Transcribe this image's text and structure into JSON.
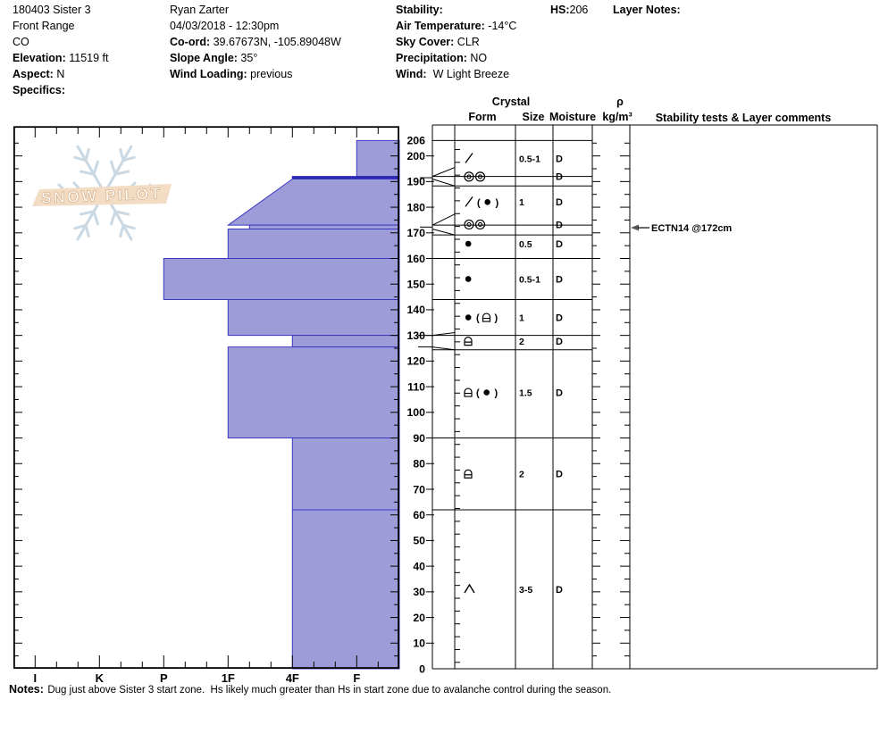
{
  "header": {
    "col1": [
      {
        "label": "",
        "value": "180403 Sister 3"
      },
      {
        "label": "",
        "value": "Front Range"
      },
      {
        "label": "",
        "value": "CO"
      },
      {
        "label": "Elevation:",
        "value": "11519 ft"
      },
      {
        "label": "Aspect:",
        "value": "N"
      },
      {
        "label": "Specifics:",
        "value": ""
      }
    ],
    "col2": [
      {
        "label": "",
        "value": "Ryan Zarter"
      },
      {
        "label": "",
        "value": "04/03/2018 - 12:30pm"
      },
      {
        "label": "Co-ord:",
        "value": "39.67673N, -105.89048W"
      },
      {
        "label": "Slope Angle:",
        "value": "35°"
      },
      {
        "label": "Wind Loading:",
        "value": "previous"
      }
    ],
    "col3": [
      {
        "label": "Stability:",
        "value": ""
      },
      {
        "label": "Air Temperature:",
        "value": "-14°C"
      },
      {
        "label": "Sky Cover:",
        "value": "CLR"
      },
      {
        "label": "Precipitation:",
        "value": "NO"
      },
      {
        "label": "Wind:",
        "value": "W Light Breeze"
      }
    ],
    "hs_label": "HS:",
    "hs_value": "206",
    "layer_notes_label": "Layer Notes:"
  },
  "watermark": {
    "text": "SNOW PILOT"
  },
  "table_header": {
    "crystal": "Crystal",
    "form": "Form",
    "size": "Size",
    "moisture": "Moisture",
    "rho": "ρ",
    "rho_unit": "kg/m³",
    "comments": "Stability tests & Layer comments"
  },
  "chart_data": {
    "type": "bar",
    "subtype": "snowpilot-hardness-profile",
    "x_categories": [
      "I",
      "K",
      "P",
      "1F",
      "4F",
      "F"
    ],
    "depth_axis_labels": [
      206,
      200,
      190,
      180,
      170,
      160,
      150,
      140,
      130,
      120,
      110,
      100,
      90,
      80,
      70,
      60,
      50,
      40,
      30,
      20,
      10,
      0
    ],
    "depth_unit": "cm",
    "total_depth_cm": 206,
    "layers": [
      {
        "top_cm": 206,
        "bottom_cm": 192,
        "hardness_top": "F",
        "hardness_bottom": "F",
        "form": [
          "slash"
        ],
        "size": "0.5-1",
        "moisture": "D",
        "density": "",
        "comment": ""
      },
      {
        "top_cm": 192,
        "bottom_cm": 191,
        "hardness_top": "4F",
        "hardness_bottom": "4F",
        "form": [
          "crust",
          "crust"
        ],
        "size": "",
        "moisture": "D",
        "density": "",
        "comment": "",
        "thin_dark": true,
        "row_top_cm": 195.5,
        "row_bottom_cm": 188.3
      },
      {
        "top_cm": 191,
        "bottom_cm": 173,
        "hardness_top": "4F",
        "hardness_bottom": "1F",
        "form": [
          "slash",
          "(",
          "dot",
          ")"
        ],
        "size": "1",
        "moisture": "D",
        "density": "",
        "comment": ""
      },
      {
        "top_cm": 173,
        "bottom_cm": 171.5,
        "hardness_top": "1F-",
        "hardness_bottom": "1F-",
        "form": [
          "crust",
          "crust"
        ],
        "size": "",
        "moisture": "D",
        "density": "",
        "comment": "ECTN14 @172cm",
        "row_top_cm": 177.3,
        "row_bottom_cm": 169.2
      },
      {
        "top_cm": 171.5,
        "bottom_cm": 160,
        "hardness_top": "1F",
        "hardness_bottom": "1F",
        "form": [
          "dot"
        ],
        "size": "0.5",
        "moisture": "D",
        "density": "",
        "comment": ""
      },
      {
        "top_cm": 160,
        "bottom_cm": 144,
        "hardness_top": "P",
        "hardness_bottom": "P",
        "form": [
          "dot"
        ],
        "size": "0.5-1",
        "moisture": "D",
        "density": "",
        "comment": ""
      },
      {
        "top_cm": 144,
        "bottom_cm": 130,
        "hardness_top": "1F",
        "hardness_bottom": "1F",
        "form": [
          "dot",
          "(",
          "fcxr",
          ")"
        ],
        "size": "1",
        "moisture": "D",
        "density": "",
        "comment": ""
      },
      {
        "top_cm": 130,
        "bottom_cm": 125.5,
        "hardness_top": "4F",
        "hardness_bottom": "4F",
        "form": [
          "fcxr"
        ],
        "size": "2",
        "moisture": "D",
        "density": "",
        "comment": "",
        "row_top_cm": 131.1,
        "row_bottom_cm": 124.4
      },
      {
        "top_cm": 125.5,
        "bottom_cm": 90,
        "hardness_top": "1F",
        "hardness_bottom": "1F",
        "form": [
          "fcxr",
          "(",
          "dot",
          ")"
        ],
        "size": "1.5",
        "moisture": "D",
        "density": "",
        "comment": ""
      },
      {
        "top_cm": 90,
        "bottom_cm": 62,
        "hardness_top": "4F",
        "hardness_bottom": "4F",
        "form": [
          "fcxr"
        ],
        "size": "2",
        "moisture": "D",
        "density": "",
        "comment": ""
      },
      {
        "top_cm": 62,
        "bottom_cm": 0,
        "hardness_top": "4F",
        "hardness_bottom": "4F",
        "form": [
          "hoar"
        ],
        "size": "3-5",
        "moisture": "D",
        "density": "",
        "comment": ""
      }
    ],
    "annotations": [
      {
        "text": "ECTN14 @172cm",
        "depth_cm": 172
      }
    ],
    "colors": {
      "bar_fill": "#9e9cd8",
      "bar_stroke": "#3b38c0",
      "thin_layer": "#2a28b4",
      "watermark_banner": "#f2dcc4",
      "watermark_text": "#ffffff",
      "watermark_outline": "#dcb994",
      "snowflake": "#c9d8e3"
    }
  },
  "notes": {
    "label": "Notes:",
    "text": "Dug just above Sister 3 start zone.  Hs likely much greater than Hs in start zone due to avalanche control during the season."
  }
}
